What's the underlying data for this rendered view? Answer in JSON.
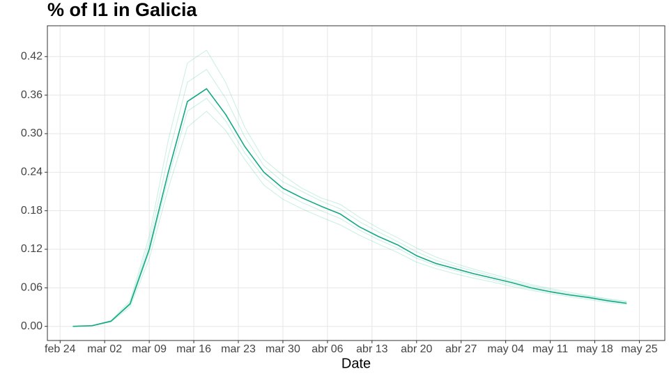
{
  "chart_data": {
    "type": "line",
    "title": "% of I1 in  Galicia",
    "x_label": "Date",
    "x": [
      "feb 26",
      "feb 29",
      "mar 03",
      "mar 06",
      "mar 09",
      "mar 12",
      "mar 15",
      "mar 18",
      "mar 21",
      "mar 24",
      "mar 27",
      "mar 30",
      "abr 02",
      "abr 05",
      "abr 08",
      "abr 11",
      "abr 14",
      "abr 17",
      "abr 20",
      "abr 23",
      "abr 26",
      "abr 29",
      "may 02",
      "may 05",
      "may 08",
      "may 11",
      "may 14",
      "may 17",
      "may 20",
      "may 23"
    ],
    "series": [
      {
        "color": "#1fbf8f",
        "opacity": 0.25,
        "values": [
          0,
          0.001,
          0.009,
          0.04,
          0.14,
          0.29,
          0.41,
          0.43,
          0.38,
          0.31,
          0.26,
          0.235,
          0.215,
          0.2,
          0.19,
          0.17,
          0.153,
          0.138,
          0.122,
          0.108,
          0.098,
          0.089,
          0.081,
          0.073,
          0.065,
          0.059,
          0.053,
          0.048,
          0.043,
          0.039
        ]
      },
      {
        "color": "#1fbf8f",
        "opacity": 0.25,
        "values": [
          0,
          0.001,
          0.007,
          0.03,
          0.105,
          0.215,
          0.31,
          0.335,
          0.305,
          0.26,
          0.22,
          0.198,
          0.183,
          0.17,
          0.158,
          0.142,
          0.128,
          0.115,
          0.1,
          0.09,
          0.082,
          0.075,
          0.069,
          0.062,
          0.056,
          0.051,
          0.046,
          0.042,
          0.037,
          0.034
        ]
      },
      {
        "color": "#1fbf8f",
        "opacity": 0.25,
        "values": [
          0,
          0.001,
          0.008,
          0.037,
          0.13,
          0.265,
          0.38,
          0.4,
          0.355,
          0.295,
          0.25,
          0.225,
          0.21,
          0.195,
          0.183,
          0.163,
          0.147,
          0.132,
          0.116,
          0.103,
          0.094,
          0.086,
          0.078,
          0.07,
          0.063,
          0.057,
          0.051,
          0.047,
          0.042,
          0.038
        ]
      },
      {
        "color": "#1fbf8f",
        "opacity": 0.25,
        "values": [
          0,
          0.001,
          0.008,
          0.033,
          0.115,
          0.23,
          0.335,
          0.355,
          0.32,
          0.27,
          0.232,
          0.208,
          0.193,
          0.18,
          0.168,
          0.15,
          0.135,
          0.122,
          0.106,
          0.095,
          0.087,
          0.079,
          0.072,
          0.065,
          0.058,
          0.053,
          0.048,
          0.044,
          0.039,
          0.035
        ]
      },
      {
        "color": "#12a883",
        "opacity": 1,
        "values": [
          0,
          0.001,
          0.008,
          0.035,
          0.12,
          0.24,
          0.35,
          0.37,
          0.33,
          0.28,
          0.24,
          0.215,
          0.2,
          0.187,
          0.175,
          0.155,
          0.14,
          0.127,
          0.11,
          0.098,
          0.09,
          0.082,
          0.075,
          0.068,
          0.06,
          0.054,
          0.049,
          0.045,
          0.04,
          0.036
        ]
      }
    ],
    "xlim": [
      "feb 22",
      "may 29"
    ],
    "xticks": [
      "feb 24",
      "mar 02",
      "mar 09",
      "mar 16",
      "mar 23",
      "mar 30",
      "abr 06",
      "abr 13",
      "abr 20",
      "abr 27",
      "may 04",
      "may 11",
      "may 18",
      "may 25"
    ],
    "ylim": [
      -0.022,
      0.468
    ],
    "yticks": [
      {
        "value": 0,
        "label": "0.00"
      },
      {
        "value": 0.06,
        "label": "0.06"
      },
      {
        "value": 0.12,
        "label": "0.12"
      },
      {
        "value": 0.18,
        "label": "0.18"
      },
      {
        "value": 0.24,
        "label": "0.24"
      },
      {
        "value": 0.3,
        "label": "0.30"
      },
      {
        "value": 0.36,
        "label": "0.36"
      },
      {
        "value": 0.42,
        "label": "0.42"
      }
    ],
    "grid": true
  }
}
